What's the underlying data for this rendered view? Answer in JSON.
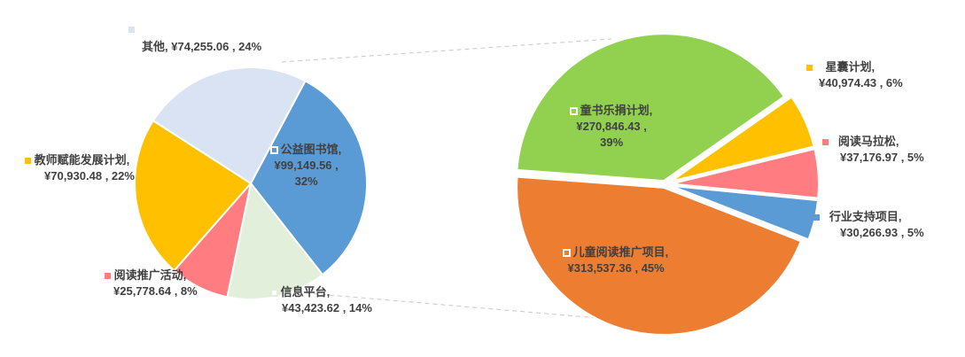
{
  "chart_data": [
    {
      "type": "pie",
      "title": "",
      "slices": [
        {
          "name": "公益图书馆",
          "value_label": "¥99,149.56",
          "percent_label": "32%",
          "value": 99149.56,
          "color": "#5B9BD5"
        },
        {
          "name": "信息平台",
          "value_label": "¥43,423.62",
          "percent_label": "14%",
          "value": 43423.62,
          "color": "#E2EFDA"
        },
        {
          "name": "阅读推广活动",
          "value_label": "¥25,778.64",
          "percent_label": "8%",
          "value": 25778.64,
          "color": "#FF7C80"
        },
        {
          "name": "教师赋能发展计划",
          "value_label": "¥70,930.48",
          "percent_label": "22%",
          "value": 70930.48,
          "color": "#FFC000"
        },
        {
          "name": "其他",
          "value_label": "¥74,255.06",
          "percent_label": "24%",
          "value": 74255.06,
          "color": "#DAE3F3"
        }
      ]
    },
    {
      "type": "pie",
      "title": "",
      "slices": [
        {
          "name": "星囊计划",
          "value_label": "¥40,974.43",
          "percent_label": "6%",
          "value": 40974.43,
          "color": "#FFC000"
        },
        {
          "name": "阅读马拉松",
          "value_label": "¥37,176.97",
          "percent_label": "5%",
          "value": 37176.97,
          "color": "#FF7C80"
        },
        {
          "name": "行业支持项目",
          "value_label": "¥30,266.93",
          "percent_label": "5%",
          "value": 30266.93,
          "color": "#5B9BD5"
        },
        {
          "name": "儿童阅读推广项目",
          "value_label": "¥313,537.36",
          "percent_label": "45%",
          "value": 313537.36,
          "color": "#ED7D31"
        },
        {
          "name": "童书乐捐计划",
          "value_label": "¥270,846.43",
          "percent_label": "39%",
          "value": 270846.43,
          "color": "#92D050"
        }
      ]
    }
  ]
}
